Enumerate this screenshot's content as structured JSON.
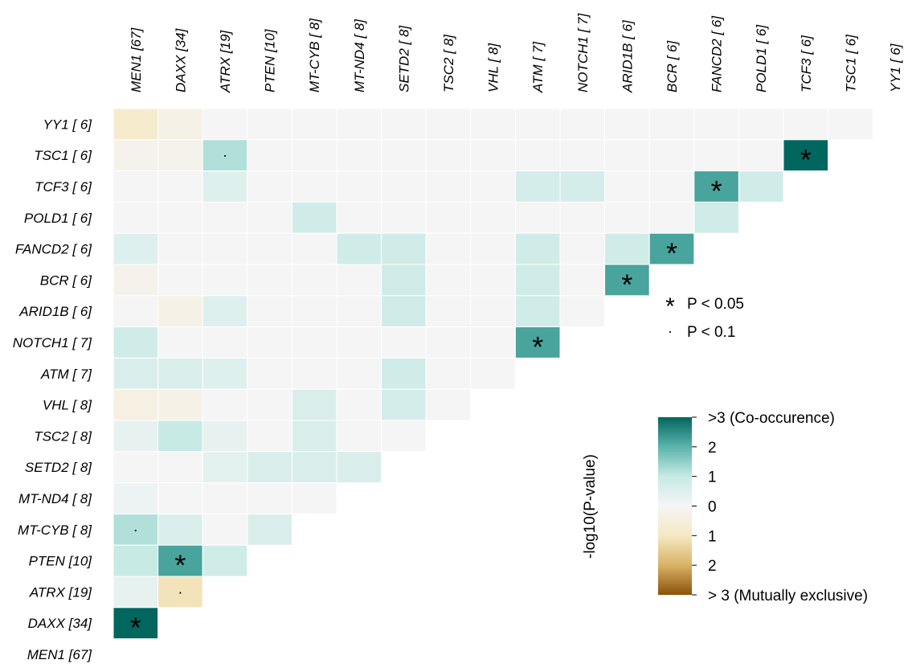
{
  "chart_data": {
    "type": "heatmap",
    "title": "",
    "columns": [
      "MEN1 [67]",
      "DAXX [34]",
      "ATRX [19]",
      "PTEN [10]",
      "MT-CYB [ 8]",
      "MT-ND4 [ 8]",
      "SETD2 [ 8]",
      "TSC2 [ 8]",
      "VHL [ 8]",
      "ATM [ 7]",
      "NOTCH1 [ 7]",
      "ARID1B [ 6]",
      "BCR [ 6]",
      "FANCD2 [ 6]",
      "POLD1 [ 6]",
      "TCF3 [ 6]",
      "TSC1 [ 6]",
      "YY1 [ 6]"
    ],
    "rows": [
      "YY1 [ 6]",
      "TSC1 [ 6]",
      "TCF3 [ 6]",
      "POLD1 [ 6]",
      "FANCD2 [ 6]",
      "BCR [ 6]",
      "ARID1B [ 6]",
      "NOTCH1 [ 7]",
      "ATM [ 7]",
      "VHL [ 8]",
      "TSC2 [ 8]",
      "SETD2 [ 8]",
      "MT-ND4 [ 8]",
      "MT-CYB [ 8]",
      "PTEN [10]",
      "ATRX [19]",
      "DAXX [34]",
      "MEN1 [67]"
    ],
    "value_description": "signed -log10(P-value); positive = co-occurrence, negative = mutual exclusivity",
    "values": [
      [
        -0.8,
        -0.3,
        0,
        0,
        0,
        0,
        0,
        0,
        0,
        0,
        0,
        0,
        0,
        0,
        0,
        0,
        0
      ],
      [
        -0.2,
        -0.2,
        1.2,
        0,
        0,
        0,
        0,
        0,
        0,
        0,
        0,
        0,
        0,
        0,
        0,
        3
      ],
      [
        0,
        0,
        0.5,
        0,
        0,
        0,
        0,
        0,
        0,
        0.7,
        0.7,
        0,
        0,
        2.2,
        0.8
      ],
      [
        0,
        0,
        0,
        0,
        0.8,
        0,
        0,
        0,
        0,
        0,
        0,
        0,
        0,
        0.8
      ],
      [
        0.5,
        0,
        0,
        0,
        0,
        0.8,
        0.8,
        0,
        0,
        0.8,
        0,
        0.8,
        2.2
      ],
      [
        -0.2,
        0,
        0,
        0,
        0,
        0,
        0.8,
        0,
        0,
        0.8,
        0,
        2.2
      ],
      [
        0,
        -0.3,
        0.5,
        0,
        0,
        0,
        0.8,
        0,
        0,
        0.8,
        0
      ],
      [
        0.8,
        0,
        0,
        0,
        0,
        0,
        0,
        0,
        0,
        2.2
      ],
      [
        0.6,
        0.6,
        0.5,
        0,
        0,
        0,
        0.8,
        0,
        0
      ],
      [
        -0.4,
        -0.3,
        0,
        0,
        0.6,
        0,
        0.7,
        0
      ],
      [
        0.3,
        1.0,
        0.3,
        0,
        0.6,
        0,
        0
      ],
      [
        0,
        0,
        0.4,
        0.6,
        0.6,
        0.6
      ],
      [
        0.2,
        0,
        0,
        0,
        0
      ],
      [
        1.2,
        0.6,
        0,
        0.6
      ],
      [
        1.0,
        2.2,
        0.8
      ],
      [
        0.3,
        -1.1
      ],
      [
        3
      ]
    ],
    "significance": [
      {
        "row": "TSC1 [ 6]",
        "col": "ATRX [19]",
        "mark": "·"
      },
      {
        "row": "TSC1 [ 6]",
        "col": "TCF3 [ 6]",
        "mark": "*"
      },
      {
        "row": "TCF3 [ 6]",
        "col": "FANCD2 [ 6]",
        "mark": "*"
      },
      {
        "row": "FANCD2 [ 6]",
        "col": "BCR [ 6]",
        "mark": "*"
      },
      {
        "row": "BCR [ 6]",
        "col": "ARID1B [ 6]",
        "mark": "*"
      },
      {
        "row": "NOTCH1 [ 7]",
        "col": "ATM [ 7]",
        "mark": "*"
      },
      {
        "row": "MT-CYB [ 8]",
        "col": "MEN1 [67]",
        "mark": "·"
      },
      {
        "row": "PTEN [10]",
        "col": "DAXX [34]",
        "mark": "*"
      },
      {
        "row": "ATRX [19]",
        "col": "DAXX [34]",
        "mark": "·"
      },
      {
        "row": "DAXX [34]",
        "col": "MEN1 [67]",
        "mark": "*"
      }
    ],
    "significance_legend": [
      {
        "symbol": "*",
        "label": "P < 0.05"
      },
      {
        "symbol": "·",
        "label": "P < 0.1"
      }
    ],
    "colorbar": {
      "title": "-log10(P-value)",
      "range": [
        -3,
        3
      ],
      "tick_labels": [
        ">3 (Co-occurence)",
        "2",
        "1",
        "0",
        "1",
        "2",
        "> 3 (Mutually exclusive)"
      ],
      "colors": [
        "#01665e",
        "#5ab4ac",
        "#c7eae5",
        "#f5f5f5",
        "#f6e8c3",
        "#d8b365",
        "#8c510a"
      ]
    }
  }
}
